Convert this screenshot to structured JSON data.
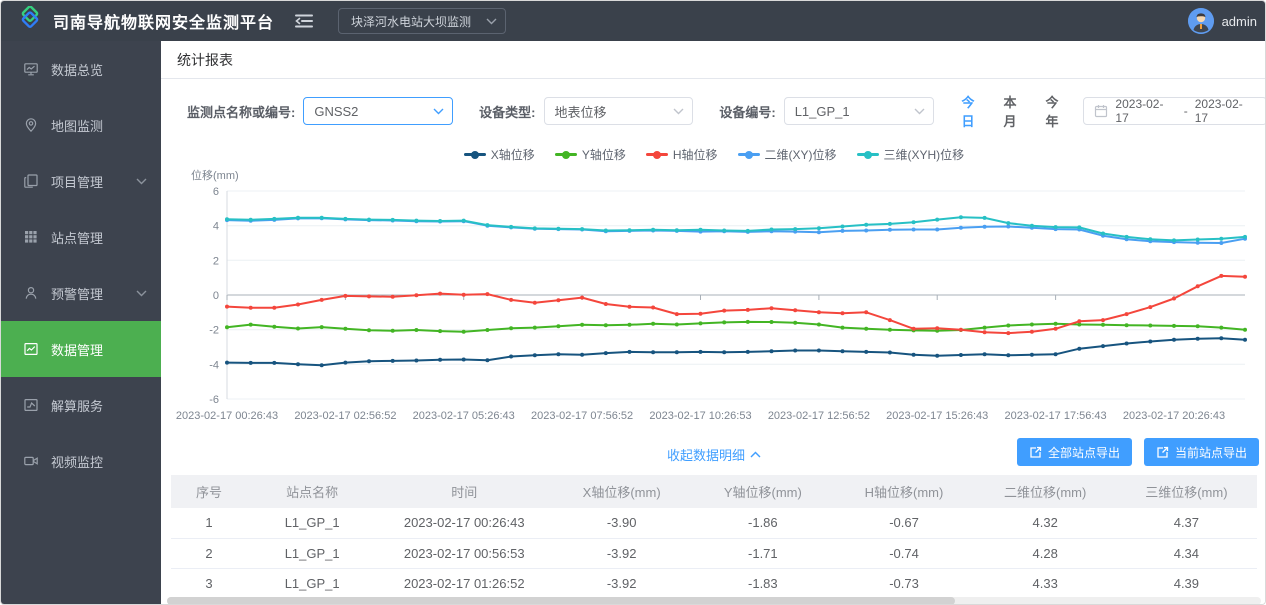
{
  "colors": {
    "accent_blue": "#409eff",
    "active_green": "#4caf50",
    "navbar_bg": "#3a414b",
    "sidebar_bg": "#3d434e"
  },
  "navbar": {
    "title": "司南导航物联网安全监测平台",
    "station_select": "块泽河水电站大坝监测",
    "username": "admin"
  },
  "sidebar": {
    "items": [
      {
        "label": "数据总览",
        "icon": "overview-board-icon",
        "expandable": false,
        "active": false
      },
      {
        "label": "地图监测",
        "icon": "map-pin-icon",
        "expandable": false,
        "active": false
      },
      {
        "label": "项目管理",
        "icon": "project-doc-icon",
        "expandable": true,
        "active": false
      },
      {
        "label": "站点管理",
        "icon": "grid-icon",
        "expandable": false,
        "active": false
      },
      {
        "label": "预警管理",
        "icon": "alert-user-icon",
        "expandable": true,
        "active": false
      },
      {
        "label": "数据管理",
        "icon": "data-chart-icon",
        "expandable": false,
        "active": true
      },
      {
        "label": "解算服务",
        "icon": "compute-chart-icon",
        "expandable": false,
        "active": false
      },
      {
        "label": "视频监控",
        "icon": "video-camera-icon",
        "expandable": false,
        "active": false
      }
    ]
  },
  "main": {
    "tab": "统计报表",
    "filters": {
      "point_label": "监测点名称或编号:",
      "point_value": "GNSS2",
      "device_type_label": "设备类型:",
      "device_type_value": "地表位移",
      "device_id_label": "设备编号:",
      "device_id_value": "L1_GP_1",
      "quick_ranges": [
        "今日",
        "本月",
        "今年"
      ],
      "active_range": "今日",
      "date_start": "2023-02-17",
      "date_separator": "-",
      "date_end": "2023-02-17"
    },
    "detail_toggle": "收起数据明细",
    "export_all": "全部站点导出",
    "export_current": "当前站点导出",
    "table": {
      "headers": [
        "序号",
        "站点名称",
        "时间",
        "X轴位移(mm)",
        "Y轴位移(mm)",
        "H轴位移(mm)",
        "二维位移(mm)",
        "三维位移(mm)"
      ],
      "rows": [
        [
          "1",
          "L1_GP_1",
          "2023-02-17 00:26:43",
          "-3.90",
          "-1.86",
          "-0.67",
          "4.32",
          "4.37"
        ],
        [
          "2",
          "L1_GP_1",
          "2023-02-17 00:56:53",
          "-3.92",
          "-1.71",
          "-0.74",
          "4.28",
          "4.34"
        ],
        [
          "3",
          "L1_GP_1",
          "2023-02-17 01:26:52",
          "-3.92",
          "-1.83",
          "-0.73",
          "4.33",
          "4.39"
        ]
      ]
    }
  },
  "chart_data": {
    "type": "line",
    "title": "",
    "xlabel": "",
    "ylabel": "位移(mm)",
    "ylim": [
      -6,
      6
    ],
    "ytick_step": 2,
    "grid": true,
    "legend_position": "top-center",
    "x_tick_labels": [
      "2023-02-17 00:26:43",
      "2023-02-17 02:56:52",
      "2023-02-17 05:26:43",
      "2023-02-17 07:56:52",
      "2023-02-17 10:26:53",
      "2023-02-17 12:56:52",
      "2023-02-17 15:26:43",
      "2023-02-17 17:56:43",
      "2023-02-17 20:26:43"
    ],
    "x_tick_indices": [
      0,
      5,
      10,
      15,
      20,
      25,
      30,
      35,
      40
    ],
    "num_points": 44,
    "series": [
      {
        "name": "X轴位移",
        "color": "#17547f",
        "values": [
          -3.9,
          -3.92,
          -3.92,
          -4.0,
          -4.05,
          -3.9,
          -3.82,
          -3.8,
          -3.78,
          -3.74,
          -3.72,
          -3.76,
          -3.55,
          -3.48,
          -3.42,
          -3.45,
          -3.35,
          -3.28,
          -3.3,
          -3.3,
          -3.28,
          -3.3,
          -3.28,
          -3.25,
          -3.2,
          -3.2,
          -3.24,
          -3.28,
          -3.32,
          -3.45,
          -3.5,
          -3.46,
          -3.42,
          -3.48,
          -3.45,
          -3.42,
          -3.1,
          -2.95,
          -2.8,
          -2.68,
          -2.58,
          -2.52,
          -2.5,
          -2.58
        ]
      },
      {
        "name": "Y轴位移",
        "color": "#43b524",
        "values": [
          -1.86,
          -1.71,
          -1.83,
          -1.93,
          -1.85,
          -1.95,
          -2.03,
          -2.06,
          -2.02,
          -2.08,
          -2.12,
          -2.02,
          -1.92,
          -1.88,
          -1.8,
          -1.72,
          -1.75,
          -1.72,
          -1.66,
          -1.7,
          -1.64,
          -1.58,
          -1.55,
          -1.56,
          -1.6,
          -1.7,
          -1.88,
          -1.95,
          -2.0,
          -2.04,
          -2.06,
          -2.02,
          -1.88,
          -1.76,
          -1.7,
          -1.66,
          -1.7,
          -1.72,
          -1.74,
          -1.76,
          -1.78,
          -1.8,
          -1.88,
          -2.0
        ]
      },
      {
        "name": "H轴位移",
        "color": "#f4463c",
        "values": [
          -0.67,
          -0.74,
          -0.73,
          -0.55,
          -0.28,
          -0.05,
          -0.08,
          -0.1,
          -0.02,
          0.08,
          0.02,
          0.05,
          -0.28,
          -0.45,
          -0.3,
          -0.15,
          -0.52,
          -0.68,
          -0.72,
          -1.1,
          -1.08,
          -0.9,
          -0.86,
          -0.76,
          -0.88,
          -1.0,
          -1.05,
          -1.0,
          -1.45,
          -1.95,
          -1.92,
          -2.0,
          -2.15,
          -2.2,
          -2.12,
          -1.95,
          -1.52,
          -1.45,
          -1.1,
          -0.7,
          -0.2,
          0.5,
          1.1,
          1.05
        ]
      },
      {
        "name": "二维(XY)位移",
        "color": "#4a9ff2",
        "values": [
          4.32,
          4.28,
          4.33,
          4.42,
          4.43,
          4.36,
          4.32,
          4.3,
          4.26,
          4.24,
          4.26,
          4.0,
          3.9,
          3.82,
          3.8,
          3.78,
          3.68,
          3.7,
          3.72,
          3.7,
          3.66,
          3.68,
          3.64,
          3.68,
          3.66,
          3.62,
          3.7,
          3.72,
          3.76,
          3.78,
          3.78,
          3.88,
          3.94,
          3.95,
          3.88,
          3.8,
          3.78,
          3.42,
          3.22,
          3.1,
          3.05,
          3.02,
          3.0,
          3.25
        ]
      },
      {
        "name": "三维(XYH)位移",
        "color": "#27c0c5",
        "values": [
          4.37,
          4.34,
          4.39,
          4.46,
          4.46,
          4.39,
          4.35,
          4.33,
          4.29,
          4.27,
          4.29,
          4.03,
          3.93,
          3.84,
          3.82,
          3.8,
          3.72,
          3.74,
          3.76,
          3.74,
          3.76,
          3.72,
          3.7,
          3.78,
          3.8,
          3.85,
          3.95,
          4.05,
          4.1,
          4.2,
          4.35,
          4.48,
          4.45,
          4.15,
          4.0,
          3.92,
          3.9,
          3.55,
          3.35,
          3.22,
          3.15,
          3.2,
          3.24,
          3.35
        ]
      }
    ]
  }
}
